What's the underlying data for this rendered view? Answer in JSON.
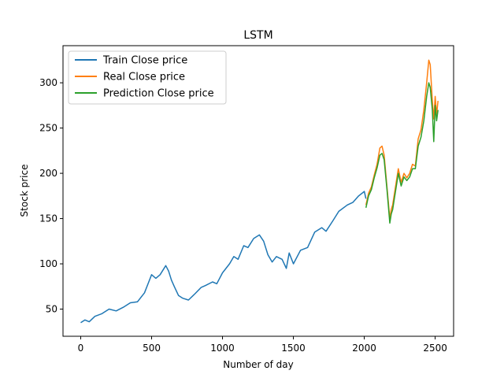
{
  "chart_data": {
    "type": "line",
    "title": "LSTM",
    "xlabel": "Number of day",
    "ylabel": "Stock price",
    "xlim": [
      -125,
      2630
    ],
    "ylim": [
      20,
      341
    ],
    "xticks": [
      0,
      500,
      1000,
      1500,
      2000,
      2500
    ],
    "yticks": [
      50,
      100,
      150,
      200,
      250,
      300
    ],
    "grid": false,
    "legend_position": "top-left",
    "series": [
      {
        "name": "Train Close price",
        "color": "#1f77b4",
        "x": [
          0,
          30,
          60,
          100,
          150,
          200,
          250,
          300,
          350,
          400,
          450,
          480,
          500,
          530,
          560,
          600,
          620,
          640,
          660,
          690,
          720,
          760,
          800,
          850,
          880,
          930,
          960,
          1000,
          1050,
          1080,
          1110,
          1150,
          1180,
          1220,
          1260,
          1290,
          1320,
          1350,
          1380,
          1420,
          1450,
          1470,
          1500,
          1550,
          1600,
          1650,
          1700,
          1730,
          1780,
          1820,
          1880,
          1920,
          1960,
          2000,
          2012
        ],
        "y": [
          35,
          38,
          36,
          42,
          45,
          50,
          48,
          52,
          57,
          58,
          68,
          80,
          88,
          84,
          88,
          98,
          92,
          82,
          75,
          65,
          62,
          60,
          66,
          74,
          76,
          80,
          78,
          90,
          100,
          108,
          105,
          120,
          118,
          128,
          132,
          125,
          110,
          102,
          108,
          105,
          95,
          112,
          100,
          115,
          118,
          135,
          140,
          136,
          148,
          158,
          165,
          168,
          175,
          180,
          172
        ]
      },
      {
        "name": "Real Close price",
        "color": "#ff7f0e",
        "x": [
          2012,
          2030,
          2050,
          2070,
          2090,
          2110,
          2125,
          2140,
          2160,
          2180,
          2190,
          2200,
          2220,
          2240,
          2260,
          2280,
          2300,
          2320,
          2340,
          2360,
          2380,
          2400,
          2420,
          2440,
          2455,
          2465,
          2480,
          2490,
          2500,
          2510,
          2520
        ],
        "y": [
          165,
          178,
          185,
          198,
          210,
          228,
          230,
          220,
          185,
          150,
          160,
          165,
          185,
          205,
          190,
          200,
          195,
          200,
          210,
          208,
          238,
          248,
          270,
          300,
          325,
          320,
          280,
          260,
          285,
          265,
          280
        ]
      },
      {
        "name": "Prediction Close price",
        "color": "#2ca02c",
        "x": [
          2012,
          2030,
          2050,
          2070,
          2090,
          2110,
          2125,
          2140,
          2160,
          2180,
          2190,
          2200,
          2220,
          2240,
          2260,
          2280,
          2300,
          2320,
          2340,
          2360,
          2380,
          2400,
          2420,
          2440,
          2455,
          2465,
          2480,
          2490,
          2500,
          2510,
          2520
        ],
        "y": [
          162,
          175,
          182,
          195,
          206,
          220,
          222,
          215,
          182,
          145,
          155,
          160,
          180,
          200,
          186,
          196,
          192,
          196,
          205,
          205,
          230,
          240,
          258,
          285,
          300,
          295,
          270,
          235,
          275,
          258,
          270
        ]
      }
    ]
  }
}
